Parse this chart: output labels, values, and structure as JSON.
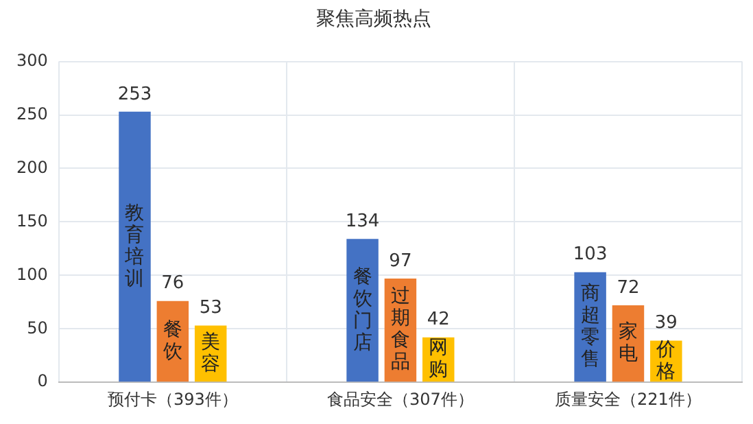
{
  "chart_data": {
    "type": "bar",
    "title": "聚焦高频热点",
    "categories": [
      "预付卡（393件）",
      "食品安全（307件）",
      "质量安全（221件）"
    ],
    "series": [
      {
        "color": "#4472c4",
        "values": [
          253,
          134,
          103
        ]
      },
      {
        "color": "#ed7d31",
        "values": [
          76,
          97,
          72
        ]
      },
      {
        "color": "#ffc000",
        "values": [
          53,
          42,
          39
        ]
      }
    ],
    "annotations": [
      "教育培训",
      "餐饮",
      "美容",
      "餐饮门店",
      "过期食品",
      "网购",
      "商超零售",
      "家电",
      "价格"
    ],
    "ylim": [
      0,
      300
    ],
    "yticks": [
      0,
      50,
      100,
      150,
      200,
      250,
      300
    ],
    "grid": true,
    "data_labels": true
  }
}
